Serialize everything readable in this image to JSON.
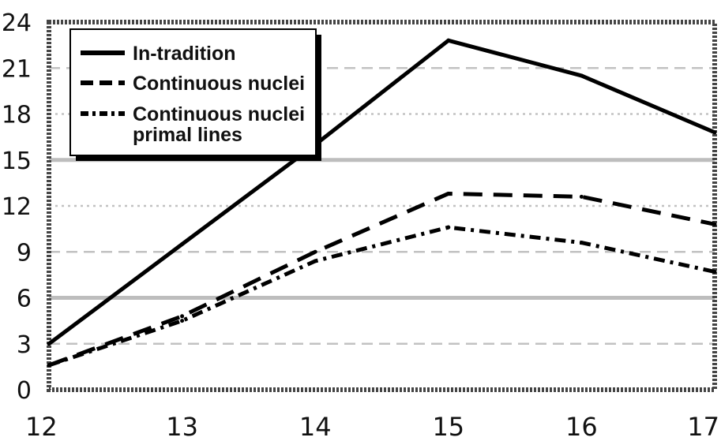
{
  "chart_data": {
    "type": "line",
    "x": [
      12,
      13,
      14,
      15,
      16,
      17
    ],
    "x_tick_labels": [
      "12",
      "13",
      "14",
      "15",
      "16",
      "17"
    ],
    "y_tick_labels": [
      "0",
      "3",
      "6",
      "9",
      "12",
      "15",
      "18",
      "21",
      "24"
    ],
    "ylim": [
      0,
      24
    ],
    "xlim": [
      12,
      17
    ],
    "grid": true,
    "legend_position": "top-left",
    "series": [
      {
        "name": "In-tradition",
        "style": "solid",
        "color": "#000000",
        "values": [
          3.0,
          9.5,
          16.0,
          22.8,
          20.5,
          16.8
        ]
      },
      {
        "name": "Continuous nuclei",
        "style": "dashed",
        "color": "#000000",
        "values": [
          1.6,
          4.8,
          9.0,
          12.8,
          12.6,
          10.8
        ]
      },
      {
        "name": "Continuous nuclei primal lines",
        "legend_lines": [
          "Continuous nuclei",
          "primal lines"
        ],
        "style": "dash-dot",
        "color": "#000000",
        "values": [
          1.6,
          4.5,
          8.4,
          10.6,
          9.6,
          7.7
        ]
      }
    ]
  }
}
